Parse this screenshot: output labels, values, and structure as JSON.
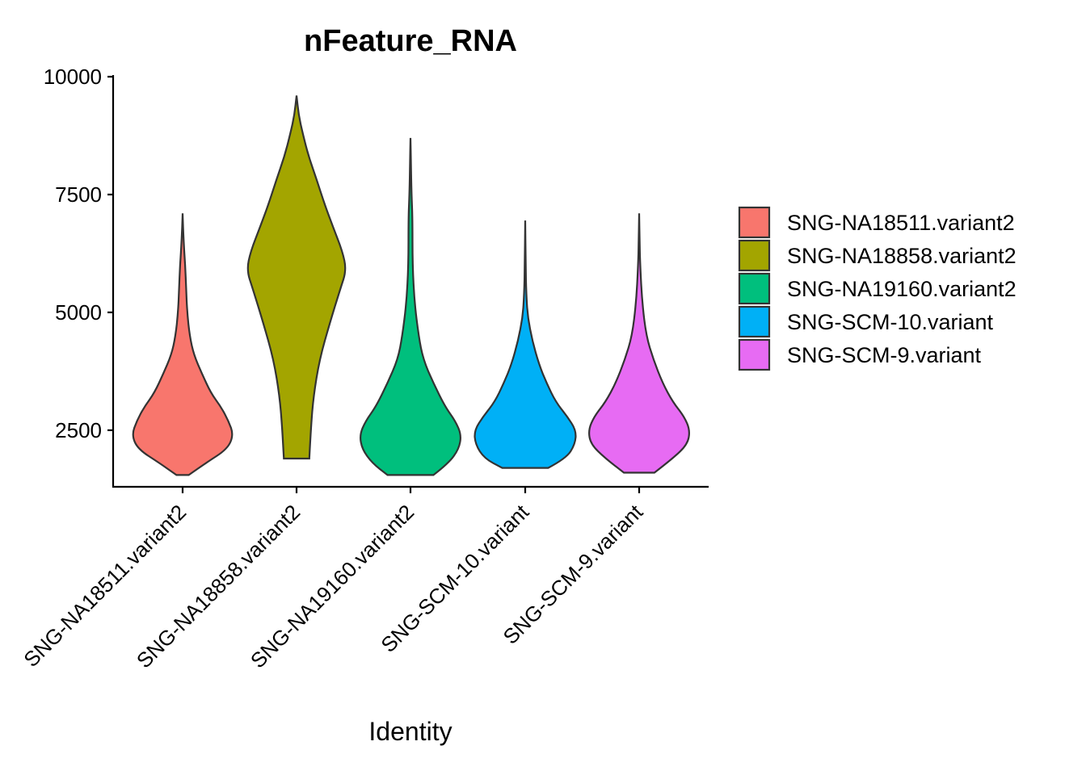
{
  "chart_data": {
    "type": "violin",
    "title": "nFeature_RNA",
    "xlabel": "Identity",
    "ylabel": "",
    "ylim": [
      1300,
      10000
    ],
    "yticks": [
      2500,
      5000,
      7500,
      10000
    ],
    "categories": [
      "SNG-NA18511.variant2",
      "SNG-NA18858.variant2",
      "SNG-NA19160.variant2",
      "SNG-SCM-10.variant",
      "SNG-SCM-9.variant"
    ],
    "colors": [
      "#F8766D",
      "#A3A500",
      "#00BF7D",
      "#00B0F6",
      "#E76BF3"
    ],
    "legend_position": "right",
    "grid": false,
    "series": [
      {
        "name": "SNG-NA18511.variant2",
        "min": 1550,
        "max": 7100,
        "density": [
          [
            1550,
            0.12
          ],
          [
            1800,
            0.45
          ],
          [
            2100,
            0.88
          ],
          [
            2400,
            1.0
          ],
          [
            2700,
            0.9
          ],
          [
            3000,
            0.75
          ],
          [
            3300,
            0.55
          ],
          [
            3700,
            0.38
          ],
          [
            4100,
            0.22
          ],
          [
            4500,
            0.14
          ],
          [
            5000,
            0.09
          ],
          [
            5500,
            0.07
          ],
          [
            6000,
            0.05
          ],
          [
            6500,
            0.02
          ],
          [
            7100,
            0.0
          ]
        ]
      },
      {
        "name": "SNG-NA18858.variant2",
        "min": 1900,
        "max": 9600,
        "density": [
          [
            1900,
            0.25
          ],
          [
            2500,
            0.28
          ],
          [
            3200,
            0.33
          ],
          [
            4000,
            0.45
          ],
          [
            4800,
            0.66
          ],
          [
            5500,
            0.86
          ],
          [
            5900,
            0.98
          ],
          [
            6300,
            0.9
          ],
          [
            6800,
            0.72
          ],
          [
            7300,
            0.55
          ],
          [
            7800,
            0.4
          ],
          [
            8300,
            0.24
          ],
          [
            8800,
            0.12
          ],
          [
            9200,
            0.04
          ],
          [
            9600,
            0.0
          ]
        ]
      },
      {
        "name": "SNG-NA19160.variant2",
        "min": 1550,
        "max": 8700,
        "density": [
          [
            1550,
            0.45
          ],
          [
            1800,
            0.75
          ],
          [
            2100,
            0.95
          ],
          [
            2400,
            1.0
          ],
          [
            2700,
            0.88
          ],
          [
            3000,
            0.68
          ],
          [
            3500,
            0.45
          ],
          [
            4000,
            0.25
          ],
          [
            4500,
            0.16
          ],
          [
            5200,
            0.08
          ],
          [
            6000,
            0.04
          ],
          [
            7000,
            0.04
          ],
          [
            7500,
            0.02
          ],
          [
            8200,
            0.01
          ],
          [
            8700,
            0.0
          ]
        ]
      },
      {
        "name": "SNG-SCM-10.variant",
        "min": 1700,
        "max": 6950,
        "density": [
          [
            1700,
            0.45
          ],
          [
            1900,
            0.8
          ],
          [
            2200,
            0.98
          ],
          [
            2500,
            1.0
          ],
          [
            2800,
            0.82
          ],
          [
            3100,
            0.6
          ],
          [
            3500,
            0.42
          ],
          [
            3900,
            0.27
          ],
          [
            4400,
            0.14
          ],
          [
            4900,
            0.05
          ],
          [
            5400,
            0.02
          ],
          [
            6000,
            0.01
          ],
          [
            6950,
            0.0
          ]
        ]
      },
      {
        "name": "SNG-SCM-9.variant",
        "min": 1600,
        "max": 7100,
        "density": [
          [
            1600,
            0.3
          ],
          [
            1900,
            0.66
          ],
          [
            2200,
            0.95
          ],
          [
            2500,
            1.0
          ],
          [
            2800,
            0.88
          ],
          [
            3100,
            0.66
          ],
          [
            3500,
            0.46
          ],
          [
            4000,
            0.28
          ],
          [
            4500,
            0.14
          ],
          [
            5200,
            0.06
          ],
          [
            6000,
            0.02
          ],
          [
            6500,
            0.01
          ],
          [
            7100,
            0.0
          ]
        ]
      }
    ]
  }
}
